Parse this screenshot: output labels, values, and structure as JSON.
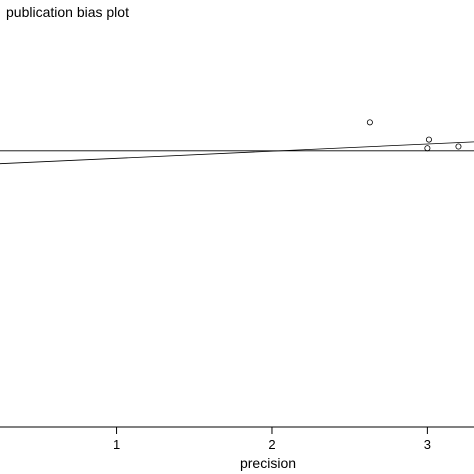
{
  "chart_data": {
    "type": "scatter",
    "title": "publication bias plot",
    "xlabel": "precision",
    "ylabel": "",
    "xlim": [
      0.25,
      3.3
    ],
    "ylim": [
      -3.2,
      1.4
    ],
    "xticks": [
      1,
      2,
      3
    ],
    "x_tick_labels": [
      "1",
      "2",
      "3"
    ],
    "points": [
      {
        "x": 2.63,
        "y": 0.33
      },
      {
        "x": 3.01,
        "y": 0.13
      },
      {
        "x": 3.0,
        "y": 0.03
      },
      {
        "x": 3.2,
        "y": 0.05
      }
    ],
    "reference_line": {
      "y": 0.0
    },
    "fitted_line": {
      "intercept": -0.17,
      "slope": 0.083
    },
    "grid": false,
    "legend": "none"
  }
}
